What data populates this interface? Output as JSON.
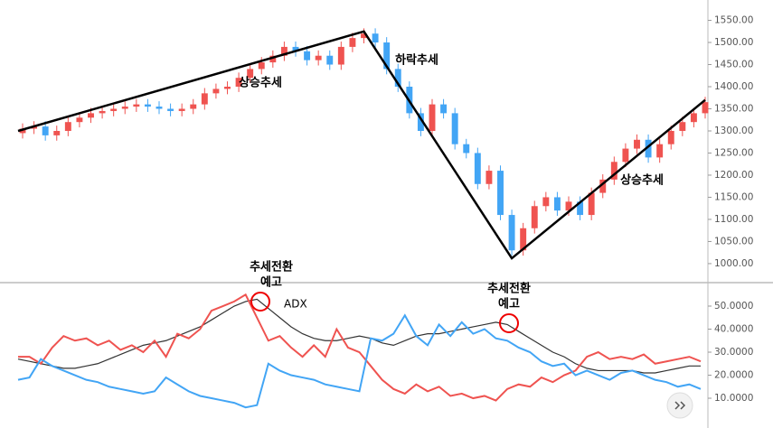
{
  "chart_data": [
    {
      "type": "candlestick",
      "open": [
        1295,
        1305,
        1310,
        1290,
        1300,
        1320,
        1330,
        1340,
        1345,
        1350,
        1355,
        1360,
        1355,
        1350,
        1345,
        1350,
        1360,
        1385,
        1395,
        1400,
        1420,
        1440,
        1455,
        1470,
        1490,
        1480,
        1460,
        1470,
        1450,
        1490,
        1510,
        1520,
        1500,
        1440,
        1400,
        1340,
        1300,
        1360,
        1340,
        1270,
        1250,
        1180,
        1210,
        1110,
        1030,
        1080,
        1130,
        1150,
        1120,
        1140,
        1110,
        1160,
        1190,
        1230,
        1260,
        1280,
        1240,
        1270,
        1300,
        1320,
        1340
      ],
      "high": [
        1317,
        1322,
        1322,
        1312,
        1332,
        1342,
        1352,
        1357,
        1362,
        1367,
        1372,
        1372,
        1367,
        1362,
        1362,
        1372,
        1397,
        1407,
        1412,
        1432,
        1452,
        1467,
        1482,
        1502,
        1502,
        1492,
        1482,
        1482,
        1502,
        1522,
        1532,
        1532,
        1512,
        1452,
        1412,
        1352,
        1372,
        1372,
        1352,
        1282,
        1262,
        1222,
        1222,
        1122,
        1092,
        1142,
        1162,
        1162,
        1152,
        1152,
        1172,
        1202,
        1242,
        1272,
        1292,
        1292,
        1282,
        1312,
        1332,
        1352,
        1377
      ],
      "low": [
        1283,
        1293,
        1278,
        1278,
        1288,
        1308,
        1318,
        1328,
        1333,
        1338,
        1343,
        1343,
        1338,
        1333,
        1333,
        1338,
        1348,
        1373,
        1383,
        1388,
        1408,
        1428,
        1443,
        1458,
        1468,
        1448,
        1448,
        1438,
        1438,
        1478,
        1498,
        1488,
        1428,
        1388,
        1328,
        1288,
        1288,
        1328,
        1258,
        1238,
        1168,
        1168,
        1098,
        1018,
        1018,
        1068,
        1118,
        1108,
        1108,
        1098,
        1098,
        1148,
        1178,
        1218,
        1248,
        1228,
        1228,
        1258,
        1288,
        1308,
        1328
      ],
      "close": [
        1305,
        1310,
        1290,
        1300,
        1320,
        1330,
        1340,
        1345,
        1350,
        1355,
        1360,
        1355,
        1350,
        1345,
        1350,
        1360,
        1385,
        1395,
        1400,
        1420,
        1440,
        1455,
        1470,
        1490,
        1480,
        1460,
        1470,
        1450,
        1490,
        1510,
        1520,
        1500,
        1440,
        1400,
        1340,
        1300,
        1360,
        1340,
        1270,
        1250,
        1180,
        1210,
        1110,
        1030,
        1080,
        1130,
        1150,
        1120,
        1140,
        1110,
        1160,
        1190,
        1230,
        1260,
        1280,
        1240,
        1270,
        1300,
        1320,
        1340,
        1365
      ],
      "up_color": "#ef5350",
      "down_color": "#42a5f5",
      "ylim": [
        957,
        1596
      ],
      "yticks": [
        {
          "value": 1000,
          "label": "1000.00"
        },
        {
          "value": 1050,
          "label": "1050.00"
        },
        {
          "value": 1100,
          "label": "1100.00"
        },
        {
          "value": 1150,
          "label": "1150.00"
        },
        {
          "value": 1200,
          "label": "1200.00"
        },
        {
          "value": 1250,
          "label": "1250.00"
        },
        {
          "value": 1300,
          "label": "1300.00"
        },
        {
          "value": 1350,
          "label": "1350.00"
        },
        {
          "value": 1400,
          "label": "1400.00"
        },
        {
          "value": 1450,
          "label": "1450.00"
        },
        {
          "value": 1500,
          "label": "1500.00"
        },
        {
          "value": 1550,
          "label": "1550.00"
        }
      ],
      "trendline": {
        "color": "#000000",
        "points": [
          [
            0,
            1300
          ],
          [
            30,
            1525
          ],
          [
            43,
            1012
          ],
          [
            60,
            1370
          ]
        ]
      },
      "annotations": [
        "상승추세",
        "하락추세",
        "상승추세"
      ]
    },
    {
      "type": "line",
      "series": [
        {
          "name": "ADX",
          "color": "#333333",
          "values": [
            27,
            26,
            25,
            24,
            23,
            23,
            24,
            25,
            27,
            29,
            31,
            33,
            34,
            35,
            37,
            39,
            41,
            44,
            47,
            50,
            52,
            53,
            49,
            45,
            41,
            38,
            36,
            35,
            35,
            36,
            37,
            36,
            34,
            33,
            35,
            37,
            38,
            38,
            39,
            40,
            41,
            42,
            43,
            42,
            39,
            36,
            33,
            30,
            28,
            25,
            23,
            22,
            22,
            22,
            22,
            21,
            21,
            22,
            23,
            24,
            24
          ]
        },
        {
          "color": "#ef5350",
          "values": [
            28,
            28,
            25,
            32,
            37,
            35,
            36,
            33,
            35,
            31,
            33,
            30,
            35,
            28,
            38,
            36,
            40,
            48,
            50,
            52,
            55,
            45,
            35,
            37,
            32,
            28,
            33,
            28,
            40,
            32,
            30,
            24,
            18,
            14,
            12,
            16,
            13,
            15,
            11,
            12,
            10,
            11,
            9,
            14,
            16,
            15,
            19,
            17,
            20,
            22,
            28,
            30,
            27,
            28,
            27,
            29,
            25,
            26,
            27,
            28,
            26
          ]
        },
        {
          "color": "#42a5f5",
          "values": [
            18,
            19,
            27,
            24,
            22,
            20,
            18,
            17,
            15,
            14,
            13,
            12,
            13,
            19,
            16,
            13,
            11,
            10,
            9,
            8,
            6,
            7,
            25,
            22,
            20,
            19,
            18,
            16,
            15,
            14,
            13,
            36,
            35,
            38,
            46,
            37,
            33,
            42,
            37,
            43,
            38,
            40,
            36,
            35,
            32,
            30,
            26,
            24,
            25,
            20,
            22,
            20,
            18,
            21,
            22,
            20,
            18,
            17,
            15,
            16,
            14
          ]
        }
      ],
      "ylim": [
        0.6,
        60.2
      ],
      "yticks": [
        {
          "value": 10,
          "label": "10.0000"
        },
        {
          "value": 20,
          "label": "20.0000"
        },
        {
          "value": 30,
          "label": "30.0000"
        },
        {
          "value": 40,
          "label": "40.0000"
        },
        {
          "value": 50,
          "label": "50.0000"
        }
      ],
      "annotations": [
        "추세전환",
        "예고",
        "추세전환",
        "예고"
      ]
    }
  ]
}
